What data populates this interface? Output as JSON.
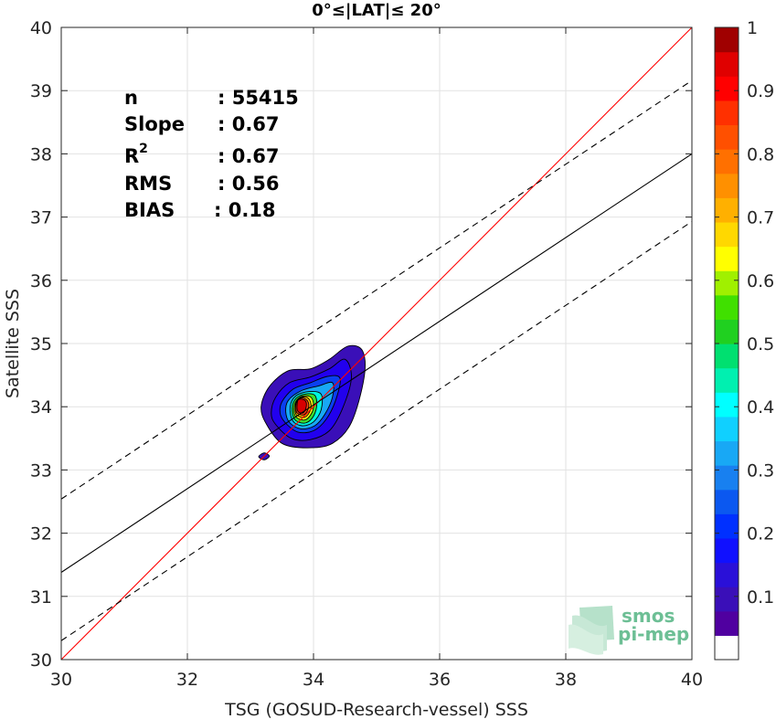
{
  "chart_data": {
    "type": "contour",
    "title": "0°≤|LAT|≤ 20°",
    "xlabel": "TSG (GOSUD-Research-vessel) SSS",
    "ylabel": "Satellite SSS",
    "xlim": [
      30,
      40
    ],
    "ylim": [
      30,
      40
    ],
    "xticks": [
      "30",
      "32",
      "34",
      "36",
      "38",
      "40"
    ],
    "yticks": [
      "30",
      "31",
      "32",
      "33",
      "34",
      "35",
      "36",
      "37",
      "38",
      "39",
      "40"
    ],
    "grid": true,
    "stats": [
      {
        "label": "n",
        "value": ": 55415"
      },
      {
        "label": "Slope",
        "value": ": 0.67"
      },
      {
        "label": "R",
        "sup": "2",
        "value": ": 0.67"
      },
      {
        "label": "RMS",
        "value": ": 0.56"
      },
      {
        "label": "BIAS",
        "value": ": 0.18"
      }
    ],
    "lines": {
      "identity": {
        "x": [
          30,
          40
        ],
        "y": [
          30,
          40
        ],
        "color": "#ff0000"
      },
      "regression": {
        "x": [
          30,
          40
        ],
        "y": [
          31.38,
          38.0
        ],
        "color": "#000000"
      },
      "upper_bound": {
        "x": [
          30,
          40
        ],
        "y": [
          32.54,
          39.16
        ],
        "color": "#000000",
        "dash": true
      },
      "lower_bound": {
        "x": [
          30,
          40
        ],
        "y": [
          30.3,
          36.93
        ],
        "color": "#000000",
        "dash": true
      }
    },
    "contours": [
      {
        "level": 0.05,
        "color": "#3a0fb8",
        "points": [
          [
            33.25,
            33.73
          ],
          [
            33.5,
            33.42
          ],
          [
            33.9,
            33.35
          ],
          [
            34.3,
            33.42
          ],
          [
            34.6,
            33.75
          ],
          [
            34.8,
            34.45
          ],
          [
            34.78,
            34.88
          ],
          [
            34.55,
            34.96
          ],
          [
            34.25,
            34.75
          ],
          [
            33.95,
            34.6
          ],
          [
            33.6,
            34.57
          ],
          [
            33.3,
            34.32
          ],
          [
            33.17,
            34.0
          ]
        ]
      },
      {
        "level": 0.1,
        "color": "#2200ee",
        "points": [
          [
            33.4,
            33.72
          ],
          [
            33.65,
            33.5
          ],
          [
            33.95,
            33.48
          ],
          [
            34.25,
            33.62
          ],
          [
            34.45,
            33.95
          ],
          [
            34.6,
            34.45
          ],
          [
            34.5,
            34.75
          ],
          [
            34.25,
            34.6
          ],
          [
            33.95,
            34.47
          ],
          [
            33.62,
            34.38
          ],
          [
            33.4,
            34.15
          ],
          [
            33.33,
            33.9
          ]
        ]
      },
      {
        "level": 0.2,
        "color": "#0b3ff0",
        "points": [
          [
            33.55,
            33.75
          ],
          [
            33.75,
            33.6
          ],
          [
            34.0,
            33.62
          ],
          [
            34.2,
            33.8
          ],
          [
            34.35,
            34.1
          ],
          [
            34.42,
            34.45
          ],
          [
            34.22,
            34.48
          ],
          [
            33.95,
            34.38
          ],
          [
            33.68,
            34.28
          ],
          [
            33.5,
            34.08
          ],
          [
            33.47,
            33.9
          ]
        ]
      },
      {
        "level": 0.3,
        "color": "#18a8f5",
        "points": [
          [
            33.62,
            33.75
          ],
          [
            33.8,
            33.65
          ],
          [
            34.02,
            33.7
          ],
          [
            34.18,
            33.88
          ],
          [
            34.3,
            34.15
          ],
          [
            34.3,
            34.38
          ],
          [
            34.08,
            34.33
          ],
          [
            33.8,
            34.25
          ],
          [
            33.6,
            34.1
          ],
          [
            33.56,
            33.92
          ]
        ]
      },
      {
        "level": 0.4,
        "color": "#00f5e0",
        "points": [
          [
            33.67,
            33.78
          ],
          [
            33.82,
            33.7
          ],
          [
            34.0,
            33.76
          ],
          [
            34.12,
            33.95
          ],
          [
            34.12,
            34.2
          ],
          [
            33.93,
            34.24
          ],
          [
            33.72,
            34.17
          ],
          [
            33.63,
            34.0
          ]
        ]
      },
      {
        "level": 0.5,
        "color": "#38e030",
        "points": [
          [
            33.7,
            33.8
          ],
          [
            33.85,
            33.74
          ],
          [
            33.98,
            33.82
          ],
          [
            34.05,
            34.0
          ],
          [
            34.02,
            34.18
          ],
          [
            33.86,
            34.2
          ],
          [
            33.72,
            34.13
          ],
          [
            33.66,
            33.98
          ]
        ]
      },
      {
        "level": 0.6,
        "color": "#ffff10",
        "points": [
          [
            33.72,
            33.84
          ],
          [
            33.86,
            33.79
          ],
          [
            33.96,
            33.88
          ],
          [
            34.0,
            34.02
          ],
          [
            33.96,
            34.15
          ],
          [
            33.83,
            34.17
          ],
          [
            33.73,
            34.1
          ],
          [
            33.69,
            33.97
          ]
        ]
      },
      {
        "level": 0.7,
        "color": "#ffb000",
        "points": [
          [
            33.73,
            33.87
          ],
          [
            33.85,
            33.83
          ],
          [
            33.94,
            33.92
          ],
          [
            33.96,
            34.04
          ],
          [
            33.91,
            34.14
          ],
          [
            33.81,
            34.15
          ],
          [
            33.73,
            34.08
          ],
          [
            33.71,
            33.97
          ]
        ]
      },
      {
        "level": 0.8,
        "color": "#ff4010",
        "points": [
          [
            33.74,
            33.9
          ],
          [
            33.84,
            33.87
          ],
          [
            33.91,
            33.95
          ],
          [
            33.92,
            34.06
          ],
          [
            33.86,
            34.13
          ],
          [
            33.78,
            34.13
          ],
          [
            33.73,
            34.06
          ],
          [
            33.72,
            33.97
          ]
        ]
      },
      {
        "level": 0.9,
        "color": "#d80000",
        "points": [
          [
            33.75,
            33.93
          ],
          [
            33.83,
            33.9
          ],
          [
            33.88,
            33.98
          ],
          [
            33.88,
            34.08
          ],
          [
            33.82,
            34.12
          ],
          [
            33.76,
            34.11
          ],
          [
            33.74,
            34.04
          ]
        ]
      }
    ],
    "small_blob": {
      "color": "#3a0fb8",
      "points": [
        [
          33.13,
          33.21
        ],
        [
          33.22,
          33.16
        ],
        [
          33.3,
          33.22
        ],
        [
          33.22,
          33.27
        ]
      ]
    },
    "colorbar": {
      "colors": [
        "#5000a0",
        "#3a0fb8",
        "#2a10d8",
        "#1010ff",
        "#0030ff",
        "#0b58f0",
        "#1880f0",
        "#18a8f5",
        "#10d0ff",
        "#00ffff",
        "#00f0b0",
        "#00e070",
        "#20d020",
        "#40e000",
        "#a0f000",
        "#ffff00",
        "#ffd800",
        "#ffb000",
        "#ff9000",
        "#ff7000",
        "#ff5000",
        "#ff3000",
        "#ff0000",
        "#e00000",
        "#a00000"
      ],
      "bottom_color": "#ffffff",
      "ticks": [
        "0.1",
        "0.2",
        "0.3",
        "0.4",
        "0.5",
        "0.6",
        "0.7",
        "0.8",
        "0.9",
        "1"
      ],
      "tick_values": [
        0.1,
        0.2,
        0.3,
        0.4,
        0.5,
        0.6,
        0.7,
        0.8,
        0.9,
        1.0
      ]
    },
    "logo": {
      "line1": "smos",
      "line2": "pi-mep",
      "color": "#6dbf95"
    }
  }
}
